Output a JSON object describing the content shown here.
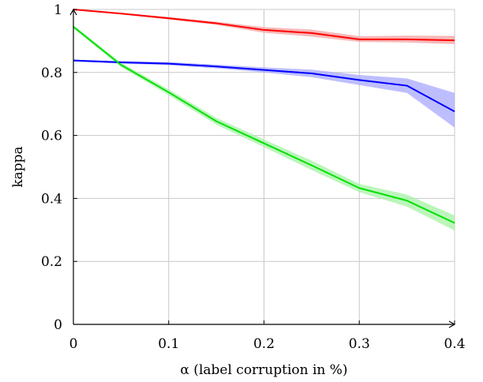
{
  "chart_data": {
    "type": "line",
    "xlabel": "α (label corruption in %)",
    "ylabel": "kappa",
    "xlim": [
      0,
      0.4
    ],
    "ylim": [
      0,
      1
    ],
    "xticks": [
      0,
      0.1,
      0.2,
      0.3,
      0.4
    ],
    "xtick_labels": [
      "0",
      "0.1",
      "0.2",
      "0.3",
      "0.4"
    ],
    "yticks": [
      0,
      0.2,
      0.4,
      0.6,
      0.8,
      1
    ],
    "ytick_labels": [
      "0",
      "0.2",
      "0.4",
      "0.6",
      "0.8",
      "1"
    ],
    "grid": true,
    "x": [
      0,
      0.05,
      0.1,
      0.15,
      0.2,
      0.25,
      0.3,
      0.35,
      0.4
    ],
    "series": [
      {
        "color": "#ff0000",
        "band_color": "#f4a0a0",
        "values": [
          1.0,
          0.987,
          0.972,
          0.956,
          0.935,
          0.925,
          0.905,
          0.905,
          0.902
        ],
        "lower": [
          0.998,
          0.984,
          0.968,
          0.951,
          0.926,
          0.914,
          0.897,
          0.895,
          0.89
        ],
        "upper": [
          1.0,
          0.99,
          0.976,
          0.961,
          0.944,
          0.936,
          0.915,
          0.917,
          0.916
        ]
      },
      {
        "color": "#0000ff",
        "band_color": "#a8a8ff",
        "values": [
          0.838,
          0.832,
          0.828,
          0.819,
          0.808,
          0.797,
          0.776,
          0.758,
          0.676
        ],
        "lower": [
          0.835,
          0.828,
          0.823,
          0.813,
          0.8,
          0.785,
          0.76,
          0.735,
          0.625
        ],
        "upper": [
          0.841,
          0.836,
          0.833,
          0.825,
          0.816,
          0.809,
          0.792,
          0.781,
          0.735
        ]
      },
      {
        "color": "#00e000",
        "band_color": "#a6f2a6",
        "values": [
          0.945,
          0.824,
          0.737,
          0.645,
          0.575,
          0.505,
          0.433,
          0.393,
          0.322
        ],
        "lower": [
          0.94,
          0.817,
          0.728,
          0.634,
          0.563,
          0.49,
          0.42,
          0.374,
          0.298
        ],
        "upper": [
          0.95,
          0.831,
          0.746,
          0.656,
          0.587,
          0.52,
          0.446,
          0.412,
          0.346
        ]
      }
    ]
  }
}
